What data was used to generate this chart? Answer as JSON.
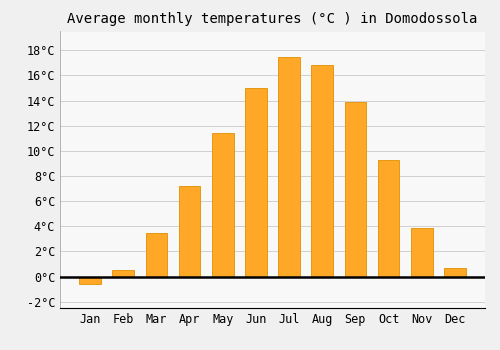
{
  "months": [
    "Jan",
    "Feb",
    "Mar",
    "Apr",
    "May",
    "Jun",
    "Jul",
    "Aug",
    "Sep",
    "Oct",
    "Nov",
    "Dec"
  ],
  "values": [
    -0.6,
    0.5,
    3.5,
    7.2,
    11.4,
    15.0,
    17.5,
    16.8,
    13.9,
    9.3,
    3.9,
    0.7
  ],
  "bar_color": "#FFA726",
  "bar_edge_color": "#E09000",
  "title": "Average monthly temperatures (°C ) in Domodossola",
  "ylim": [
    -2.5,
    19.5
  ],
  "yticks": [
    -2,
    0,
    2,
    4,
    6,
    8,
    10,
    12,
    14,
    16,
    18
  ],
  "ylabel_suffix": "°C",
  "grid_color": "#d0d0d0",
  "background_color": "#f0f0f0",
  "plot_bg_color": "#f8f8f8",
  "title_fontsize": 10,
  "tick_fontsize": 8.5,
  "font_family": "monospace"
}
